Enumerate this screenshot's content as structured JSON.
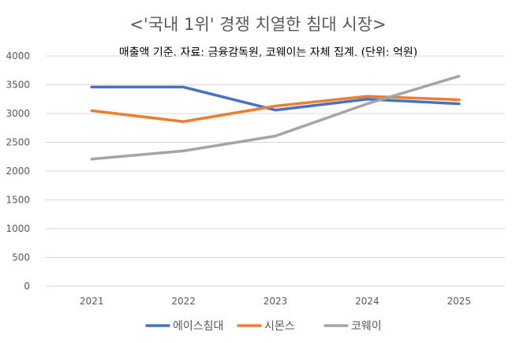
{
  "chart_data": {
    "type": "line",
    "title": "<'국내 1위' 경쟁 치열한 침대 시장>",
    "subtitle": "매출액 기준. 자료: 금융감독원, 코웨이는 자체 집계. (단위: 억원)",
    "categories": [
      "2021",
      "2022",
      "2023",
      "2024",
      "2025"
    ],
    "ylim": [
      0,
      4000
    ],
    "yticks": [
      0,
      500,
      1000,
      1500,
      2000,
      2500,
      3000,
      3500,
      4000
    ],
    "grid": true,
    "legend_position": "bottom",
    "series": [
      {
        "name": "에이스침대",
        "color": "#4472C4",
        "values": [
          3460,
          3460,
          3060,
          3250,
          3170
        ]
      },
      {
        "name": "시몬스",
        "color": "#ED7D31",
        "values": [
          3050,
          2860,
          3130,
          3300,
          3240
        ]
      },
      {
        "name": "코웨이",
        "color": "#A5A5A5",
        "values": [
          2210,
          2350,
          2610,
          3170,
          3650
        ]
      }
    ]
  }
}
